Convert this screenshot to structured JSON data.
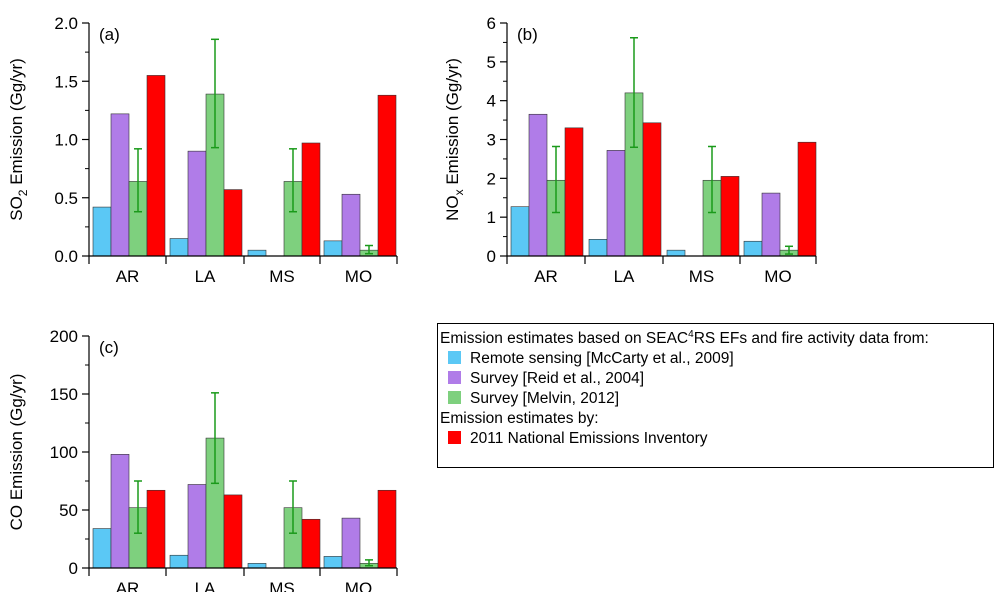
{
  "chart_data": [
    {
      "type": "bar",
      "panel": "(a)",
      "ylabel": {
        "pre": "SO",
        "sub": "2",
        "post": " Emission (Gg/yr)"
      },
      "ylim": [
        0,
        2.0
      ],
      "yticks": [
        "0.0",
        "0.5",
        "1.0",
        "1.5",
        "2.0"
      ],
      "categories": [
        "AR",
        "LA",
        "MS",
        "MO"
      ],
      "series": [
        {
          "name": "Remote sensing [McCarty et al., 2009]",
          "values": [
            0.42,
            0.15,
            0.05,
            0.13
          ]
        },
        {
          "name": "Survey [Reid et al., 2004]",
          "values": [
            1.22,
            0.9,
            null,
            0.53
          ]
        },
        {
          "name": "Survey [Melvin, 2012]",
          "values": [
            0.64,
            1.39,
            0.64,
            0.05
          ],
          "err_low": [
            0.38,
            0.93,
            0.38,
            0.02
          ],
          "err_high": [
            0.92,
            1.86,
            0.92,
            0.09
          ]
        },
        {
          "name": "2011 National Emissions Inventory",
          "values": [
            1.55,
            0.57,
            0.97,
            1.38
          ]
        }
      ]
    },
    {
      "type": "bar",
      "panel": "(b)",
      "ylabel": {
        "pre": "NO",
        "sub": "x",
        "post": " Emission (Gg/yr)"
      },
      "ylim": [
        0,
        6
      ],
      "yticks": [
        "0",
        "1",
        "2",
        "3",
        "4",
        "5",
        "6"
      ],
      "categories": [
        "AR",
        "LA",
        "MS",
        "MO"
      ],
      "series": [
        {
          "name": "Remote sensing [McCarty et al., 2009]",
          "values": [
            1.27,
            0.43,
            0.15,
            0.38
          ]
        },
        {
          "name": "Survey [Reid et al., 2004]",
          "values": [
            3.65,
            2.72,
            null,
            1.62
          ]
        },
        {
          "name": "Survey [Melvin, 2012]",
          "values": [
            1.95,
            4.2,
            1.95,
            0.15
          ],
          "err_low": [
            1.12,
            2.8,
            1.12,
            0.05
          ],
          "err_high": [
            2.82,
            5.62,
            2.82,
            0.25
          ]
        },
        {
          "name": "2011 National Emissions Inventory",
          "values": [
            3.3,
            3.43,
            2.05,
            2.93
          ]
        }
      ]
    },
    {
      "type": "bar",
      "panel": "(c)",
      "ylabel": {
        "pre": "CO Emission (Gg/yr)",
        "sub": "",
        "post": ""
      },
      "ylim": [
        0,
        200
      ],
      "yticks": [
        "0",
        "50",
        "100",
        "150",
        "200"
      ],
      "categories": [
        "AR",
        "LA",
        "MS",
        "MO"
      ],
      "series": [
        {
          "name": "Remote sensing [McCarty et al., 2009]",
          "values": [
            34,
            11,
            4,
            10
          ]
        },
        {
          "name": "Survey [Reid et al., 2004]",
          "values": [
            98,
            72,
            null,
            43
          ]
        },
        {
          "name": "Survey [Melvin, 2012]",
          "values": [
            52,
            112,
            52,
            4
          ],
          "err_low": [
            30,
            73,
            30,
            2
          ],
          "err_high": [
            75,
            151,
            75,
            7
          ]
        },
        {
          "name": "2011 National Emissions Inventory",
          "values": [
            67,
            63,
            42,
            67
          ]
        }
      ]
    }
  ],
  "colors": {
    "remote": "#5bc8f5",
    "reid": "#b07ce8",
    "melvin": "#7ed07e",
    "nei": "#ff0000",
    "errorbar": "#1a9a1a"
  },
  "legend": {
    "header1_pre": "Emission estimates based on SEAC",
    "header1_sup": "4",
    "header1_post": "RS EFs and fire activity data from:",
    "item1": "Remote sensing [McCarty et al., 2009]",
    "item2": "Survey [Reid et al., 2004]",
    "item3": "Survey [Melvin, 2012]",
    "header2": "Emission estimates by:",
    "item4": "2011 National Emissions Inventory"
  }
}
